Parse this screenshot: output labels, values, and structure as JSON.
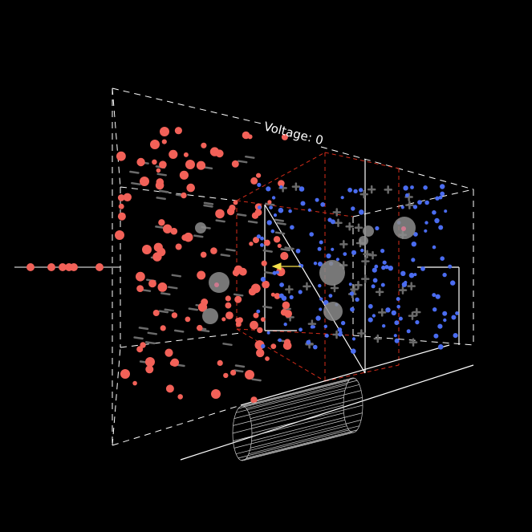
{
  "scene": {
    "voltage_label": "Voltage: 0",
    "background_color": "#000000",
    "positive_charge_color": "#f26158",
    "negative_charge_color": "#4a6cf0",
    "sphere_color": "#8c8c8c",
    "field_marker_color": "#6b6b6b",
    "wireframe_color": "#ffffff",
    "capacitor_edge_color": "#d62c1a",
    "arrow_color": "#f5e04a",
    "icons": [
      "cylinder-wire-icon",
      "arrow-icon"
    ]
  }
}
